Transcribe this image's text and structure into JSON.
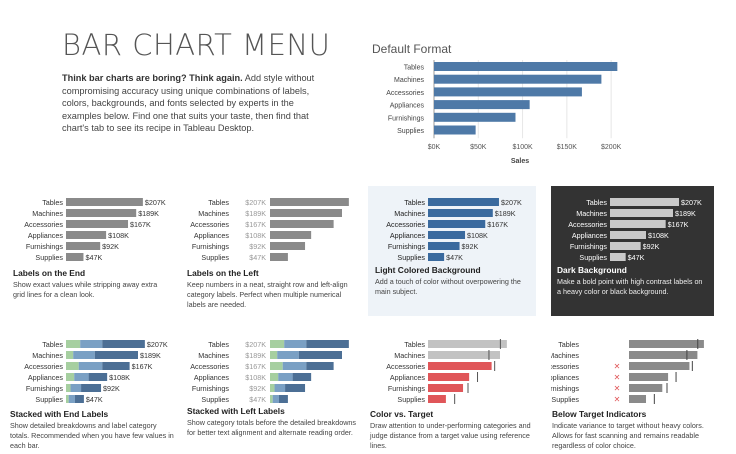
{
  "header": {
    "title": "BAR CHART MENU",
    "intro_bold": "Think bar charts are boring? Think again.",
    "intro_text": " Add style without compromising accuracy using unique combinations of labels, colors, backgrounds, and fonts selected by experts in the examples below. Find one that suits your taste, then find that chart's tab to see its recipe in Tableau Desktop."
  },
  "default_format": {
    "heading": "Default Format",
    "axis_title": "Sales",
    "ticks": [
      "$0K",
      "$50K",
      "$100K",
      "$150K",
      "$200K"
    ]
  },
  "chart_data": {
    "type": "bar",
    "title": "Default Format",
    "categories": [
      "Tables",
      "Machines",
      "Accessories",
      "Appliances",
      "Furnishings",
      "Supplies"
    ],
    "values": [
      207,
      189,
      167,
      108,
      92,
      47
    ],
    "value_labels": [
      "$207K",
      "$189K",
      "$167K",
      "$108K",
      "$92K",
      "$47K"
    ],
    "xlabel": "Sales",
    "xlim": [
      0,
      210
    ]
  },
  "stacked_segments": [
    [
      0.18,
      0.28,
      0.54
    ],
    [
      0.1,
      0.3,
      0.6
    ],
    [
      0.2,
      0.37,
      0.43
    ],
    [
      0.2,
      0.35,
      0.45
    ],
    [
      0.13,
      0.3,
      0.57
    ],
    [
      0.15,
      0.35,
      0.5
    ]
  ],
  "targets": [
    190,
    160,
    175,
    130,
    105,
    70
  ],
  "variants": [
    {
      "title": "Labels on the End",
      "desc": "Show exact values while stripping away extra grid lines for a clean look."
    },
    {
      "title": "Labels on the Left",
      "desc": "Keep numbers in a neat, straight row and left-align category labels. Perfect when multiple numerical labels are needed."
    },
    {
      "title": "Light Colored Background",
      "desc": "Add a touch of color without overpowering the main subject."
    },
    {
      "title": "Dark Background",
      "desc": "Make a bold point with high contrast labels on a heavy color or black background."
    },
    {
      "title": "Stacked with End Labels",
      "desc": "Show detailed breakdowns and label category totals. Recommended when you have few values in each bar."
    },
    {
      "title": "Stacked with Left Labels",
      "desc": "Show category totals before the detailed breakdowns for better text alignment and alternate reading order."
    },
    {
      "title": "Color vs. Target",
      "desc": "Draw attention to under-performing categories and judge distance from a target value using reference lines."
    },
    {
      "title": "Below Target Indicators",
      "desc": "Indicate variance to target without heavy colors. Allows for fast scanning and remains readable regardless of color choice."
    }
  ],
  "below_target_mark": "✕",
  "colors": {
    "default_bar": "#4e79a7",
    "gray_bar": "#8a8a8a",
    "light_gray_bar": "#c2c2c2",
    "blue_bar": "#3a6a9e",
    "dark_bg": "#333333",
    "dark_bar": "#c9c9c9",
    "red_bar": "#e05659",
    "red_mark": "#e05659",
    "stack1": "#a6cfa0",
    "stack2": "#7aa0c4",
    "stack3": "#4c6f95"
  }
}
